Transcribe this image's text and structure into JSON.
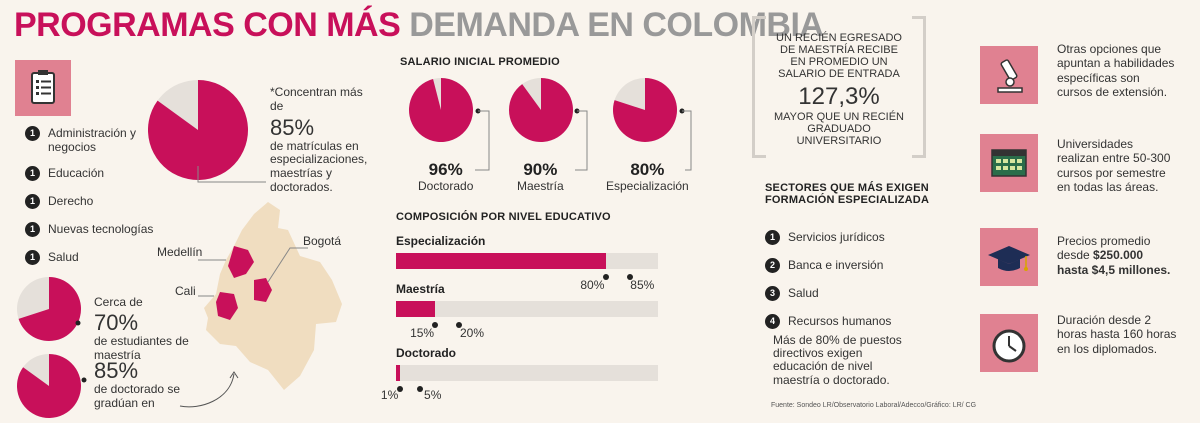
{
  "title": {
    "part1": "PROGRAMAS CON MÁS",
    "part2": "DEMANDA EN COLOMBIA"
  },
  "colors": {
    "accent": "#c8105a",
    "pink_box": "#e08191",
    "grey_slice": "#e5e0da",
    "map": "#f0ddc0"
  },
  "programs": [
    {
      "rank": "1",
      "label": "Administración y negocios"
    },
    {
      "rank": "1",
      "label": "Educación"
    },
    {
      "rank": "1",
      "label": "Derecho"
    },
    {
      "rank": "1",
      "label": "Nuevas tecnologías"
    },
    {
      "rank": "1",
      "label": "Salud"
    }
  ],
  "concentration": {
    "prefix": "*Concentran más de",
    "value": "85%",
    "suffix": "de matrículas en especializaciones, maestrías y doctorados.",
    "fraction": 0.85
  },
  "graduation": {
    "master": {
      "prefix": "Cerca de",
      "value": "70%",
      "suffix": "de estudiantes de maestría",
      "fraction": 0.7
    },
    "doctor": {
      "value": "85%",
      "suffix": "de doctorado se gradúan en",
      "fraction": 0.85
    }
  },
  "map_labels": {
    "medellin": "Medellín",
    "bogota": "Bogotá",
    "cali": "Cali"
  },
  "salary": {
    "heading": "SALARIO INICIAL PROMEDIO",
    "items": [
      {
        "value": "96%",
        "label": "Doctorado",
        "fraction": 0.96
      },
      {
        "value": "90%",
        "label": "Maestría",
        "fraction": 0.9
      },
      {
        "value": "80%",
        "label": "Especialización",
        "fraction": 0.8
      }
    ]
  },
  "composition": {
    "heading": "COMPOSICIÓN POR NIVEL EDUCATIVO",
    "bars": [
      {
        "label": "Especialización",
        "fill": 0.8,
        "mark2": 0.85,
        "v1": "80%",
        "v2": "85%"
      },
      {
        "label": "Maestría",
        "fill": 0.15,
        "mark2": 0.2,
        "v1": "15%",
        "v2": "20%"
      },
      {
        "label": "Doctorado",
        "fill": 0.01,
        "mark2": 0.05,
        "v1": "1%",
        "v2": "5%"
      }
    ]
  },
  "quote": {
    "line1": "UN RECIÉN EGRESADO DE MAESTRÍA RECIBE EN PROMEDIO UN SALARIO DE ENTRADA",
    "value": "127,3%",
    "line2": "MAYOR QUE UN RECIÉN GRADUADO UNIVERSITARIO"
  },
  "sectors": {
    "heading1": "SECTORES QUE MÁS EXIGEN",
    "heading2": "FORMACIÓN ESPECIALIZADA",
    "items": [
      {
        "rank": "1",
        "label": "Servicios jurídicos"
      },
      {
        "rank": "2",
        "label": "Banca e inversión"
      },
      {
        "rank": "3",
        "label": "Salud"
      },
      {
        "rank": "4",
        "label": "Recursos humanos"
      }
    ],
    "note": "Más de 80% de puestos directivos exigen educación de nivel maestría o doctorado."
  },
  "options": [
    {
      "icon": "microscope-icon",
      "text": "Otras opciones que apuntan a habilidades específicas son cursos de extensión."
    },
    {
      "icon": "calendar-icon",
      "text": "Universidades realizan entre 50-300 cursos por semestre en todas las áreas."
    },
    {
      "icon": "graduation-cap-icon",
      "text": "Precios promedio desde",
      "bold": "$250.000 hasta $4,5 millones."
    },
    {
      "icon": "clock-icon",
      "text": "Duración desde 2 horas hasta 160 horas en los diplomados."
    }
  ],
  "source": "Fuente: Sondeo LR/Observatorio Laboral/Adecco/Gráfico: LR/ CG"
}
